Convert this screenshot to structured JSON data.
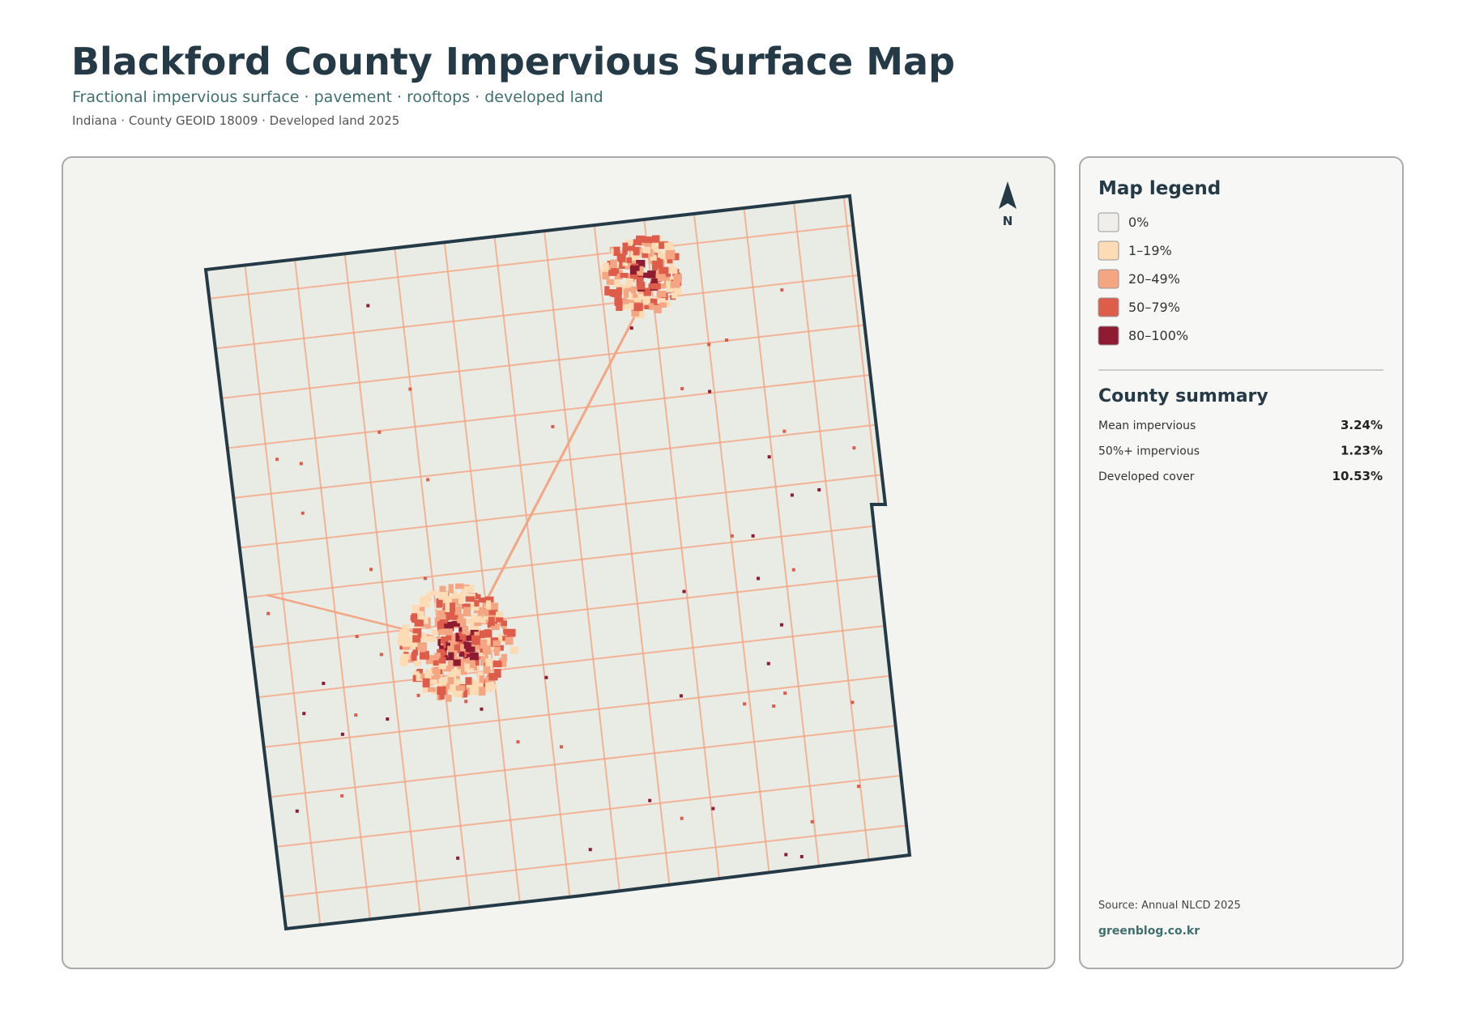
{
  "header": {
    "title": "Blackford County Impervious Surface Map",
    "subtitle": "Fractional impervious surface · pavement · rooftops · developed land",
    "meta": "Indiana · County GEOID 18009 · Developed land 2025"
  },
  "map": {
    "north": "N"
  },
  "legend": {
    "title": "Map legend",
    "items": [
      {
        "label": "0%",
        "color": "#efeeea"
      },
      {
        "label": "1–19%",
        "color": "#fddcb5"
      },
      {
        "label": "20–49%",
        "color": "#f4a582"
      },
      {
        "label": "50–79%",
        "color": "#dd5d4a"
      },
      {
        "label": "80–100%",
        "color": "#8e1b32"
      }
    ]
  },
  "summary": {
    "title": "County summary",
    "rows": [
      {
        "label": "Mean impervious",
        "value": "3.24%"
      },
      {
        "label": "50%+ impervious",
        "value": "1.23%"
      },
      {
        "label": "Developed cover",
        "value": "10.53%"
      }
    ]
  },
  "footer": {
    "source": "Source: Annual NLCD 2025",
    "site": "greenblog.co.kr"
  }
}
